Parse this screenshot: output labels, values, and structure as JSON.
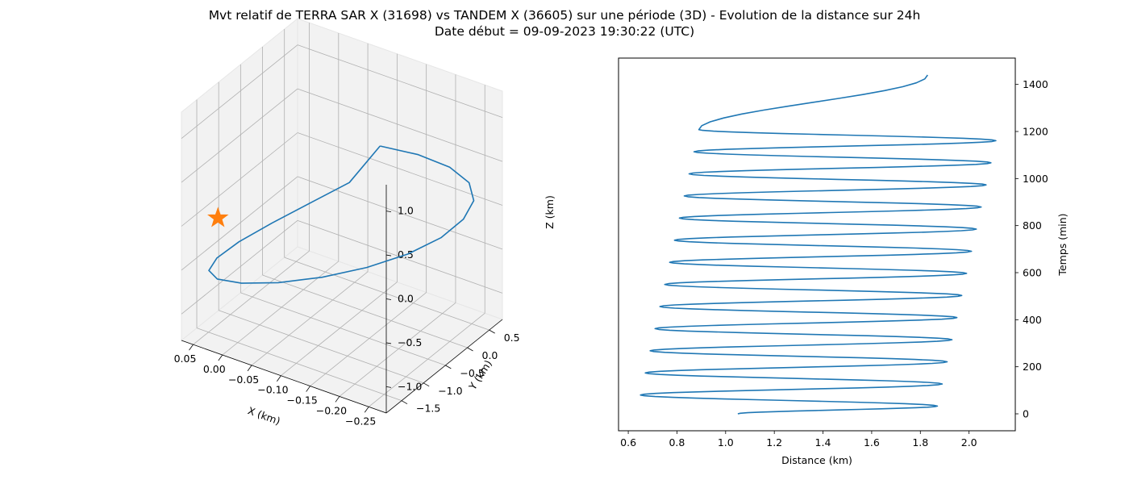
{
  "figure": {
    "title_line1": "Mvt relatif de TERRA SAR X (31698) vs TANDEM X (36605) sur une période (3D) - Evolution de la distance sur 24h",
    "title_line2": "Date début = 09-09-2023 19:30:22 (UTC)"
  },
  "colors": {
    "line": "#1f77b4",
    "marker": "#ff7f0e",
    "pane": "#f2f2f2",
    "grid": "#b0b0b0"
  },
  "chart_data": [
    {
      "type": "line",
      "projection": "3d",
      "title": "",
      "xlabel": "X (km)",
      "ylabel": "Y (km)",
      "zlabel": "Z (km)",
      "x_ticks": [
        "−0.25",
        "−0.20",
        "−0.15",
        "−0.10",
        "−0.05",
        "0.00",
        "0.05"
      ],
      "y_ticks": [
        "−1.5",
        "−1.0",
        "−0.5",
        "0.0",
        "0.5"
      ],
      "z_ticks": [
        "−1.0",
        "−0.5",
        "0.0",
        "0.5",
        "1.0"
      ],
      "xlim": [
        -0.28,
        0.07
      ],
      "ylim": [
        -1.85,
        0.8
      ],
      "zlim": [
        -1.3,
        1.3
      ],
      "grid": true,
      "series": [
        {
          "x": [
            -0.196,
            -0.238,
            -0.267,
            -0.277,
            -0.267,
            -0.238,
            -0.196,
            -0.143,
            -0.084,
            -0.026,
            0.026,
            0.064,
            0.082,
            0.077,
            0.05,
            0.006,
            -0.049,
            -0.107,
            -0.16
          ],
          "y": [
            -0.87,
            -0.56,
            -0.23,
            0.08,
            0.32,
            0.47,
            0.52,
            0.47,
            0.32,
            0.08,
            -0.23,
            -0.56,
            -0.87,
            -1.13,
            -1.31,
            -1.39,
            -1.37,
            -1.26,
            -1.09
          ],
          "z": [
            1.148,
            1.025,
            0.817,
            0.54,
            0.216,
            -0.125,
            -0.455,
            -0.747,
            -0.978,
            -1.13,
            -1.19,
            -1.153,
            -1.023,
            -0.81,
            -0.532,
            -0.21,
            0.126,
            0.45,
            0.736
          ]
        }
      ],
      "marker": {
        "symbol": "star",
        "x": 0.075,
        "y": -0.95,
        "z": -0.28
      }
    },
    {
      "type": "line",
      "title": "",
      "xlabel": "Distance (km)",
      "ylabel": "Temps (min)",
      "x_ticks": [
        0.6,
        0.8,
        1.0,
        1.2,
        1.4,
        1.6,
        1.8,
        2.0
      ],
      "y_ticks": [
        0,
        200,
        400,
        600,
        800,
        1000,
        1200,
        1400
      ],
      "xlim": [
        0.56,
        2.19
      ],
      "ylim": [
        -72,
        1512
      ],
      "y_axis_side": "right",
      "grid": false,
      "series": [
        {
          "x": [
            1.05,
            1.87,
            0.65,
            1.89,
            0.67,
            1.91,
            0.69,
            1.93,
            0.71,
            1.95,
            0.73,
            1.97,
            0.75,
            1.99,
            0.77,
            2.01,
            0.79,
            2.03,
            0.81,
            2.05,
            0.83,
            2.07,
            0.85,
            2.09,
            0.87,
            2.11,
            0.89,
            1.83
          ],
          "y": [
            0,
            33,
            80,
            127,
            174,
            221,
            268,
            315,
            362,
            409,
            456,
            503,
            550,
            597,
            644,
            691,
            738,
            785,
            832,
            879,
            926,
            973,
            1020,
            1067,
            1114,
            1161,
            1208,
            1440
          ],
          "y_fix_note_hidden": null
        }
      ]
    }
  ]
}
